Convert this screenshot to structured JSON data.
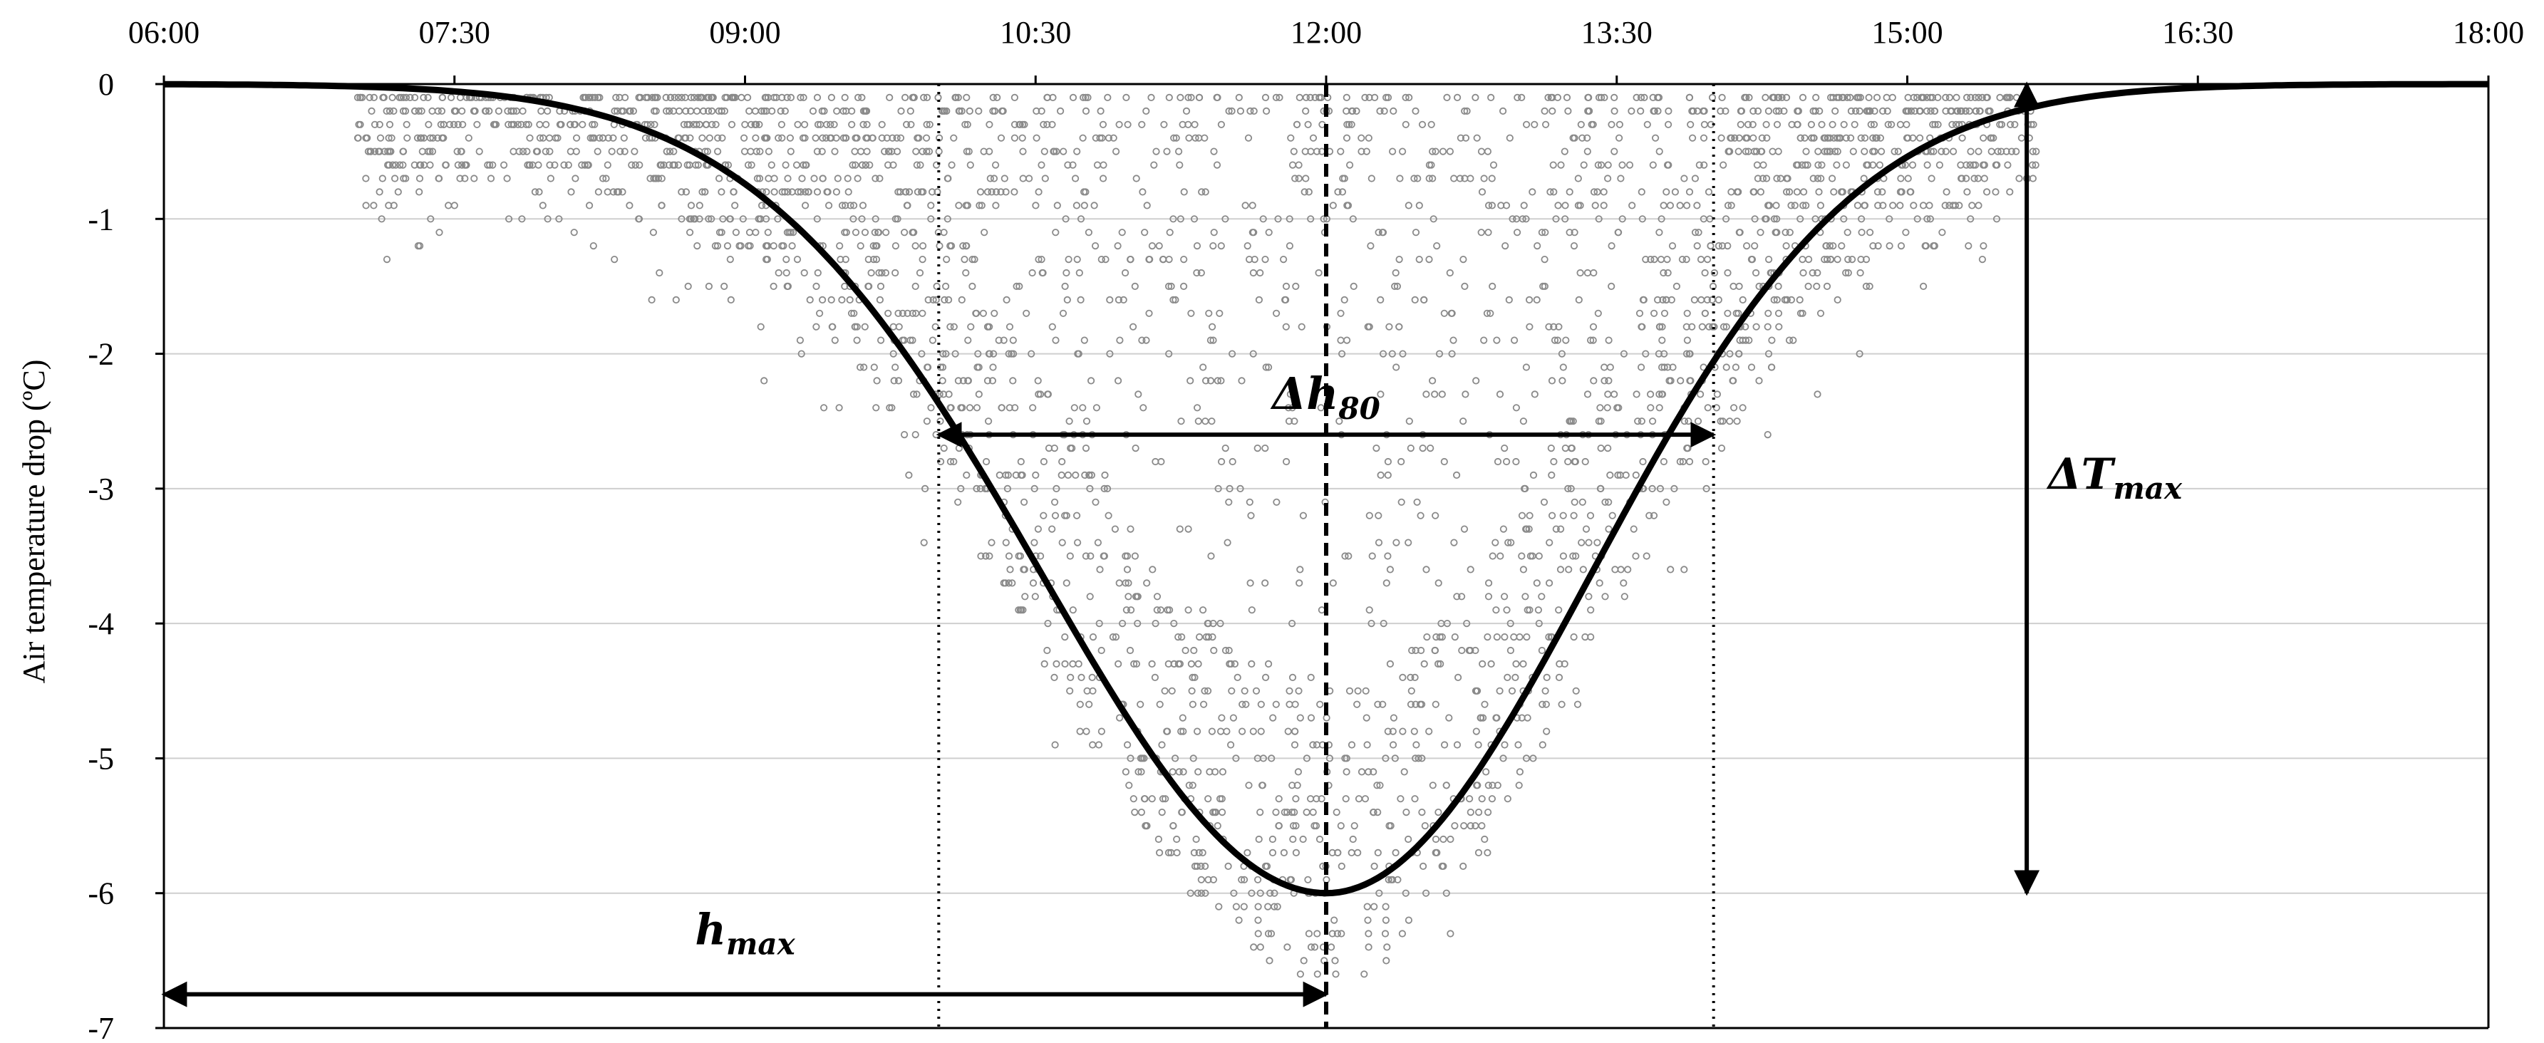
{
  "chart_data": {
    "type": "scatter",
    "title": "",
    "xlabel": "",
    "ylabel": "Air temperature drop (ºC)",
    "x_ticks": [
      "06:00",
      "07:30",
      "09:00",
      "10:30",
      "12:00",
      "13:30",
      "15:00",
      "16:30",
      "18:00"
    ],
    "x_range": [
      "06:00",
      "18:00"
    ],
    "y_ticks": [
      0,
      -1,
      -2,
      -3,
      -4,
      -5,
      -6,
      -7
    ],
    "ylim": [
      -7,
      0
    ],
    "x_axis_position": "top",
    "grid": "horizontal",
    "legend": "none",
    "curve": {
      "name": "",
      "shape": "gaussian",
      "peak_time": "12:00",
      "peak_value": -6.0,
      "points": [
        {
          "x": "06:00",
          "y": 0.0
        },
        {
          "x": "07:00",
          "y": -0.08
        },
        {
          "x": "07:30",
          "y": -0.2
        },
        {
          "x": "08:00",
          "y": -0.45
        },
        {
          "x": "08:30",
          "y": -0.85
        },
        {
          "x": "09:00",
          "y": -1.35
        },
        {
          "x": "09:30",
          "y": -1.95
        },
        {
          "x": "10:00",
          "y": -2.6
        },
        {
          "x": "10:30",
          "y": -3.35
        },
        {
          "x": "11:00",
          "y": -4.4
        },
        {
          "x": "11:30",
          "y": -5.4
        },
        {
          "x": "12:00",
          "y": -6.0
        },
        {
          "x": "12:30",
          "y": -5.4
        },
        {
          "x": "13:00",
          "y": -4.4
        },
        {
          "x": "13:30",
          "y": -3.35
        },
        {
          "x": "14:00",
          "y": -2.6
        },
        {
          "x": "14:30",
          "y": -1.55
        },
        {
          "x": "15:00",
          "y": -0.85
        },
        {
          "x": "15:30",
          "y": -0.4
        },
        {
          "x": "16:00",
          "y": -0.18
        },
        {
          "x": "16:30",
          "y": -0.06
        },
        {
          "x": "17:00",
          "y": -0.02
        },
        {
          "x": "18:00",
          "y": 0.0
        }
      ]
    },
    "vertical_lines": [
      {
        "x": "10:00",
        "style": "dotted"
      },
      {
        "x": "12:00",
        "style": "dashed"
      },
      {
        "x": "14:00",
        "style": "dotted"
      }
    ],
    "annotations": [
      {
        "text": "Δh",
        "subscript": "80",
        "arrow_from": {
          "x": "10:00",
          "y": -2.6
        },
        "arrow_to": {
          "x": "14:00",
          "y": -2.6
        }
      },
      {
        "text": "h",
        "subscript": "max",
        "arrow_from": {
          "x": "06:00",
          "y": -6.75
        },
        "arrow_to": {
          "x": "12:00",
          "y": -6.75
        }
      },
      {
        "text": "ΔT",
        "subscript": "max",
        "arrow_from": {
          "x": "15:37",
          "y": 0.0
        },
        "arrow_to": {
          "x": "15:37",
          "y": -6.0
        }
      }
    ],
    "scatter_note": "dense grey point cloud of observations around the curve; y values quantized to 0.1 ºC steps",
    "scatter_color": "#8a8a8a"
  }
}
